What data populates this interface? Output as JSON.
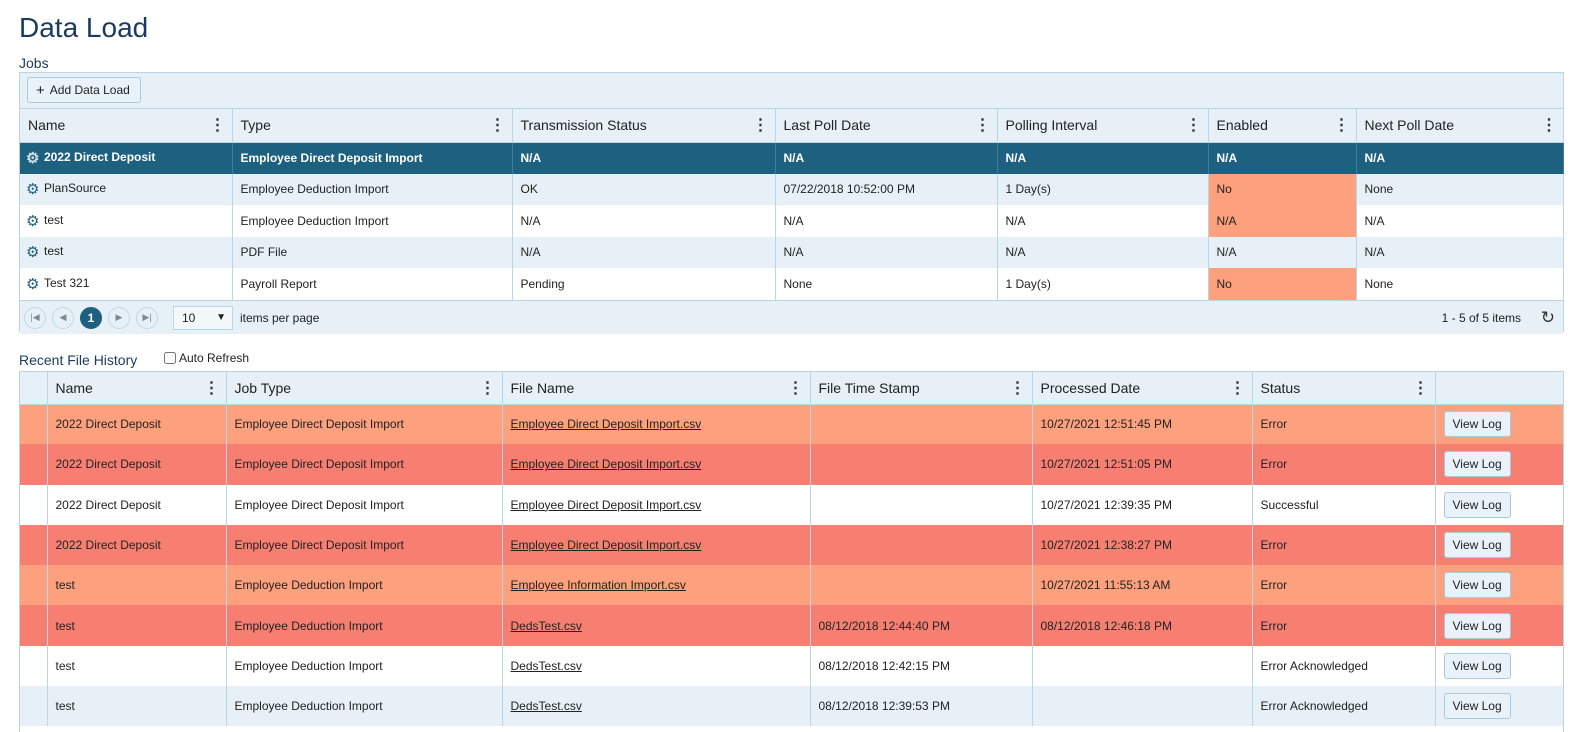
{
  "page": {
    "title": "Data Load"
  },
  "jobs": {
    "label": "Jobs",
    "add_button_label": "Add Data Load",
    "columns": [
      "Name",
      "Type",
      "Transmission Status",
      "Last Poll Date",
      "Polling Interval",
      "Enabled",
      "Next Poll Date"
    ],
    "rows": [
      {
        "name": "2022 Direct Deposit",
        "type": "Employee Direct Deposit Import",
        "transmission_status": "N/A",
        "last_poll_date": "N/A",
        "polling_interval": "N/A",
        "enabled": "N/A",
        "next_poll_date": "N/A"
      },
      {
        "name": "PlanSource",
        "type": "Employee Deduction Import",
        "transmission_status": "OK",
        "last_poll_date": "07/22/2018 10:52:00 PM",
        "polling_interval": "1 Day(s)",
        "enabled": "No",
        "next_poll_date": "None"
      },
      {
        "name": "test",
        "type": "Employee Deduction Import",
        "transmission_status": "N/A",
        "last_poll_date": "N/A",
        "polling_interval": "N/A",
        "enabled": "N/A",
        "next_poll_date": "N/A"
      },
      {
        "name": "test",
        "type": "PDF File",
        "transmission_status": "N/A",
        "last_poll_date": "N/A",
        "polling_interval": "N/A",
        "enabled": "N/A",
        "next_poll_date": "N/A"
      },
      {
        "name": "Test 321",
        "type": "Payroll Report",
        "transmission_status": "Pending",
        "last_poll_date": "None",
        "polling_interval": "1 Day(s)",
        "enabled": "No",
        "next_poll_date": "None"
      }
    ],
    "pager": {
      "current_page": "1",
      "page_size": "10",
      "items_per_page_label": "items per page",
      "range_text": "1 - 5 of 5 items"
    }
  },
  "history": {
    "label": "Recent File History",
    "auto_refresh_label": "Auto Refresh",
    "columns": [
      "Name",
      "Job Type",
      "File Name",
      "File Time Stamp",
      "Processed Date",
      "Status"
    ],
    "view_log_label": "View Log",
    "rows": [
      {
        "name": "2022 Direct Deposit",
        "job_type": "Employee Direct Deposit Import",
        "file_name": "Employee Direct Deposit Import.csv",
        "file_time_stamp": "",
        "processed_date": "10/27/2021 12:51:45 PM",
        "status": "Error"
      },
      {
        "name": "2022 Direct Deposit",
        "job_type": "Employee Direct Deposit Import",
        "file_name": "Employee Direct Deposit Import.csv",
        "file_time_stamp": "",
        "processed_date": "10/27/2021 12:51:05 PM",
        "status": "Error"
      },
      {
        "name": "2022 Direct Deposit",
        "job_type": "Employee Direct Deposit Import",
        "file_name": "Employee Direct Deposit Import.csv",
        "file_time_stamp": "",
        "processed_date": "10/27/2021 12:39:35 PM",
        "status": "Successful"
      },
      {
        "name": "2022 Direct Deposit",
        "job_type": "Employee Direct Deposit Import",
        "file_name": "Employee Direct Deposit Import.csv",
        "file_time_stamp": "",
        "processed_date": "10/27/2021 12:38:27 PM",
        "status": "Error"
      },
      {
        "name": "test",
        "job_type": "Employee Deduction Import",
        "file_name": "Employee Information Import.csv",
        "file_time_stamp": "",
        "processed_date": "10/27/2021 11:55:13 AM",
        "status": "Error"
      },
      {
        "name": "test",
        "job_type": "Employee Deduction Import",
        "file_name": "DedsTest.csv",
        "file_time_stamp": "08/12/2018 12:44:40 PM",
        "processed_date": "08/12/2018 12:46:18 PM",
        "status": "Error"
      },
      {
        "name": "test",
        "job_type": "Employee Deduction Import",
        "file_name": "DedsTest.csv",
        "file_time_stamp": "08/12/2018 12:42:15 PM",
        "processed_date": "",
        "status": "Error Acknowledged"
      },
      {
        "name": "test",
        "job_type": "Employee Deduction Import",
        "file_name": "DedsTest.csv",
        "file_time_stamp": "08/12/2018 12:39:53 PM",
        "processed_date": "",
        "status": "Error Acknowledged"
      }
    ]
  },
  "colors": {
    "selected_row": "#1d6080",
    "alt_row": "#e6f0f6",
    "warning_orange": "#fca07e",
    "error_red": "#f77f72",
    "title": "#1a3b5c"
  },
  "icons": [
    "plus-icon",
    "gear-icon",
    "kebab-menu-icon",
    "first-page-icon",
    "prev-page-icon",
    "next-page-icon",
    "last-page-icon",
    "dropdown-caret-icon",
    "refresh-icon"
  ]
}
